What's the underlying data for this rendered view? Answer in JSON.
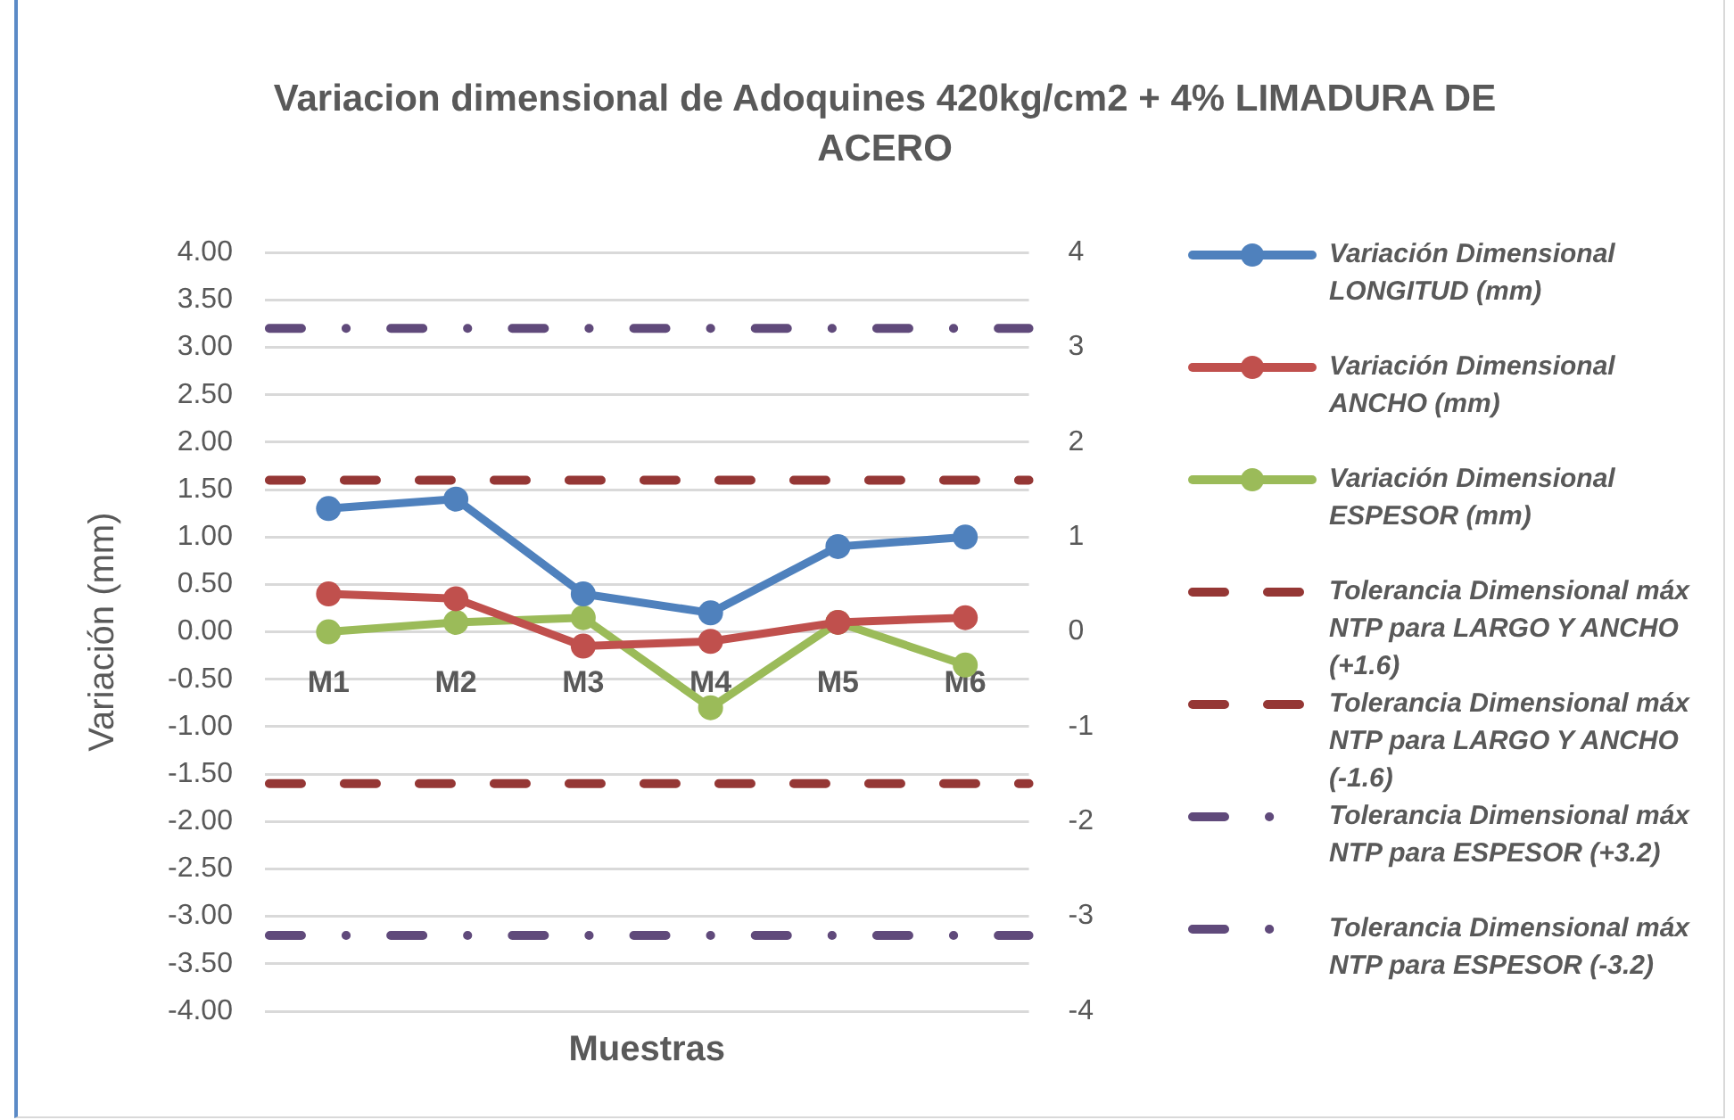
{
  "chart_data": {
    "type": "line",
    "title": "Variacion dimensional de Adoquines 420kg/cm2 + 4% LIMADURA DE ACERO",
    "xlabel": "Muestras",
    "ylabel": "Variación (mm)",
    "categories": [
      "M1",
      "M2",
      "M3",
      "M4",
      "M5",
      "M6"
    ],
    "series": [
      {
        "name": "Variación Dimensional LONGITUD (mm)",
        "color": "#4f81bd",
        "values": [
          1.3,
          1.4,
          0.4,
          0.2,
          0.9,
          1.0
        ]
      },
      {
        "name": "Variación Dimensional ANCHO (mm)",
        "color": "#c0504d",
        "values": [
          0.4,
          0.35,
          -0.15,
          -0.1,
          0.1,
          0.15
        ]
      },
      {
        "name": "Variación Dimensional ESPESOR (mm)",
        "color": "#9bbb59",
        "values": [
          0,
          0.1,
          0.15,
          -0.8,
          0.1,
          -0.35
        ]
      }
    ],
    "ylim": [
      -4,
      4
    ],
    "yticks": [
      {
        "value": -4,
        "label": "-4.00"
      },
      {
        "value": -3.5,
        "label": "-3.50"
      },
      {
        "value": -3,
        "label": "-3.00"
      },
      {
        "value": -2.5,
        "label": "-2.50"
      },
      {
        "value": -2,
        "label": "-2.00"
      },
      {
        "value": -1.5,
        "label": "-1.50"
      },
      {
        "value": -1,
        "label": "-1.00"
      },
      {
        "value": -0.5,
        "label": "-0.50"
      },
      {
        "value": 0,
        "label": "0.00"
      },
      {
        "value": 0.5,
        "label": "0.50"
      },
      {
        "value": 1,
        "label": "1.00"
      },
      {
        "value": 1.5,
        "label": "1.50"
      },
      {
        "value": 2,
        "label": "2.00"
      },
      {
        "value": 2.5,
        "label": "2.50"
      },
      {
        "value": 3,
        "label": "3.00"
      },
      {
        "value": 3.5,
        "label": "3.50"
      },
      {
        "value": 4,
        "label": "4.00"
      }
    ],
    "y2lim": [
      -4,
      4
    ],
    "y2ticks": [
      -4,
      -3,
      -2,
      -1,
      0,
      1,
      2,
      3,
      4
    ],
    "ref_lines": [
      {
        "axis": "y",
        "value": 1.6,
        "label": "Tolerancia Dimensional máx NTP para LARGO Y ANCHO (+1.6)",
        "color": "#953735",
        "line_style": "dashed"
      },
      {
        "axis": "y",
        "value": -1.6,
        "label": "Tolerancia Dimensional máx NTP para LARGO Y ANCHO (-1.6)",
        "color": "#953735",
        "line_style": "dashed"
      },
      {
        "axis": "y",
        "value": 3.2,
        "label": "Tolerancia Dimensional máx NTP para ESPESOR (+3.2)",
        "color": "#604a7b",
        "line_style": "dashdot"
      },
      {
        "axis": "y",
        "value": -3.2,
        "label": "Tolerancia Dimensional máx NTP para ESPESOR (-3.2)",
        "color": "#604a7b",
        "line_style": "dashdot"
      }
    ],
    "grid": "y",
    "legend": "right",
    "marker": "circle",
    "line_style": "solid"
  }
}
